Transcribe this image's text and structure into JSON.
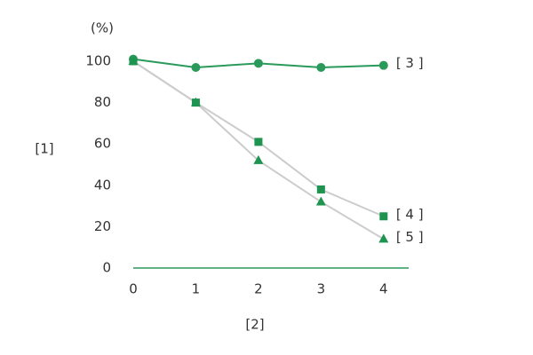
{
  "chart_data": {
    "type": "line",
    "unit_label": "(%)",
    "y_label": "[1]",
    "x_label": "[2]",
    "x": [
      0,
      1,
      2,
      3,
      4
    ],
    "xlim": [
      0,
      4.4
    ],
    "xticks": [
      0,
      1,
      2,
      3,
      4
    ],
    "ylim": [
      0,
      100
    ],
    "yticks": [
      0,
      20,
      40,
      60,
      80,
      100
    ],
    "grid": false,
    "axis_color": "#2a9a5a",
    "legend": "line-end",
    "series": [
      {
        "name": "[ 3 ]",
        "color": "#2a9a5a",
        "line_color": "#2a9a5a",
        "marker": "circle",
        "values": [
          101,
          97,
          99,
          97,
          98
        ]
      },
      {
        "name": "[ 4 ]",
        "color": "#1f9450",
        "line_color": "#cccccc",
        "marker": "square",
        "values": [
          100,
          80,
          61,
          38,
          25
        ]
      },
      {
        "name": "[ 5 ]",
        "color": "#1f9450",
        "line_color": "#cccccc",
        "marker": "triangle",
        "values": [
          100,
          80,
          52,
          32,
          14
        ]
      }
    ]
  }
}
